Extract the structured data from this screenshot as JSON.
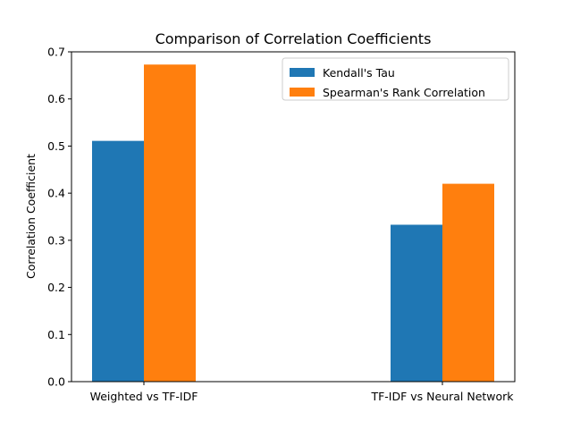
{
  "chart_data": {
    "type": "bar",
    "title": "Comparison of Correlation Coefficients",
    "xlabel": "",
    "ylabel": "Correlation Coefficient",
    "categories": [
      "Weighted vs TF-IDF",
      "TF-IDF vs Neural Network"
    ],
    "series": [
      {
        "name": "Kendall's Tau",
        "color": "#1f77b4",
        "values": [
          0.511,
          0.333
        ]
      },
      {
        "name": "Spearman's Rank Correlation",
        "color": "#ff7f0e",
        "values": [
          0.673,
          0.42
        ]
      }
    ],
    "ylim": [
      0,
      0.7
    ],
    "yticks": [
      "0.0",
      "0.1",
      "0.2",
      "0.3",
      "0.4",
      "0.5",
      "0.6",
      "0.7"
    ],
    "legend": "top-right",
    "grid": false
  }
}
